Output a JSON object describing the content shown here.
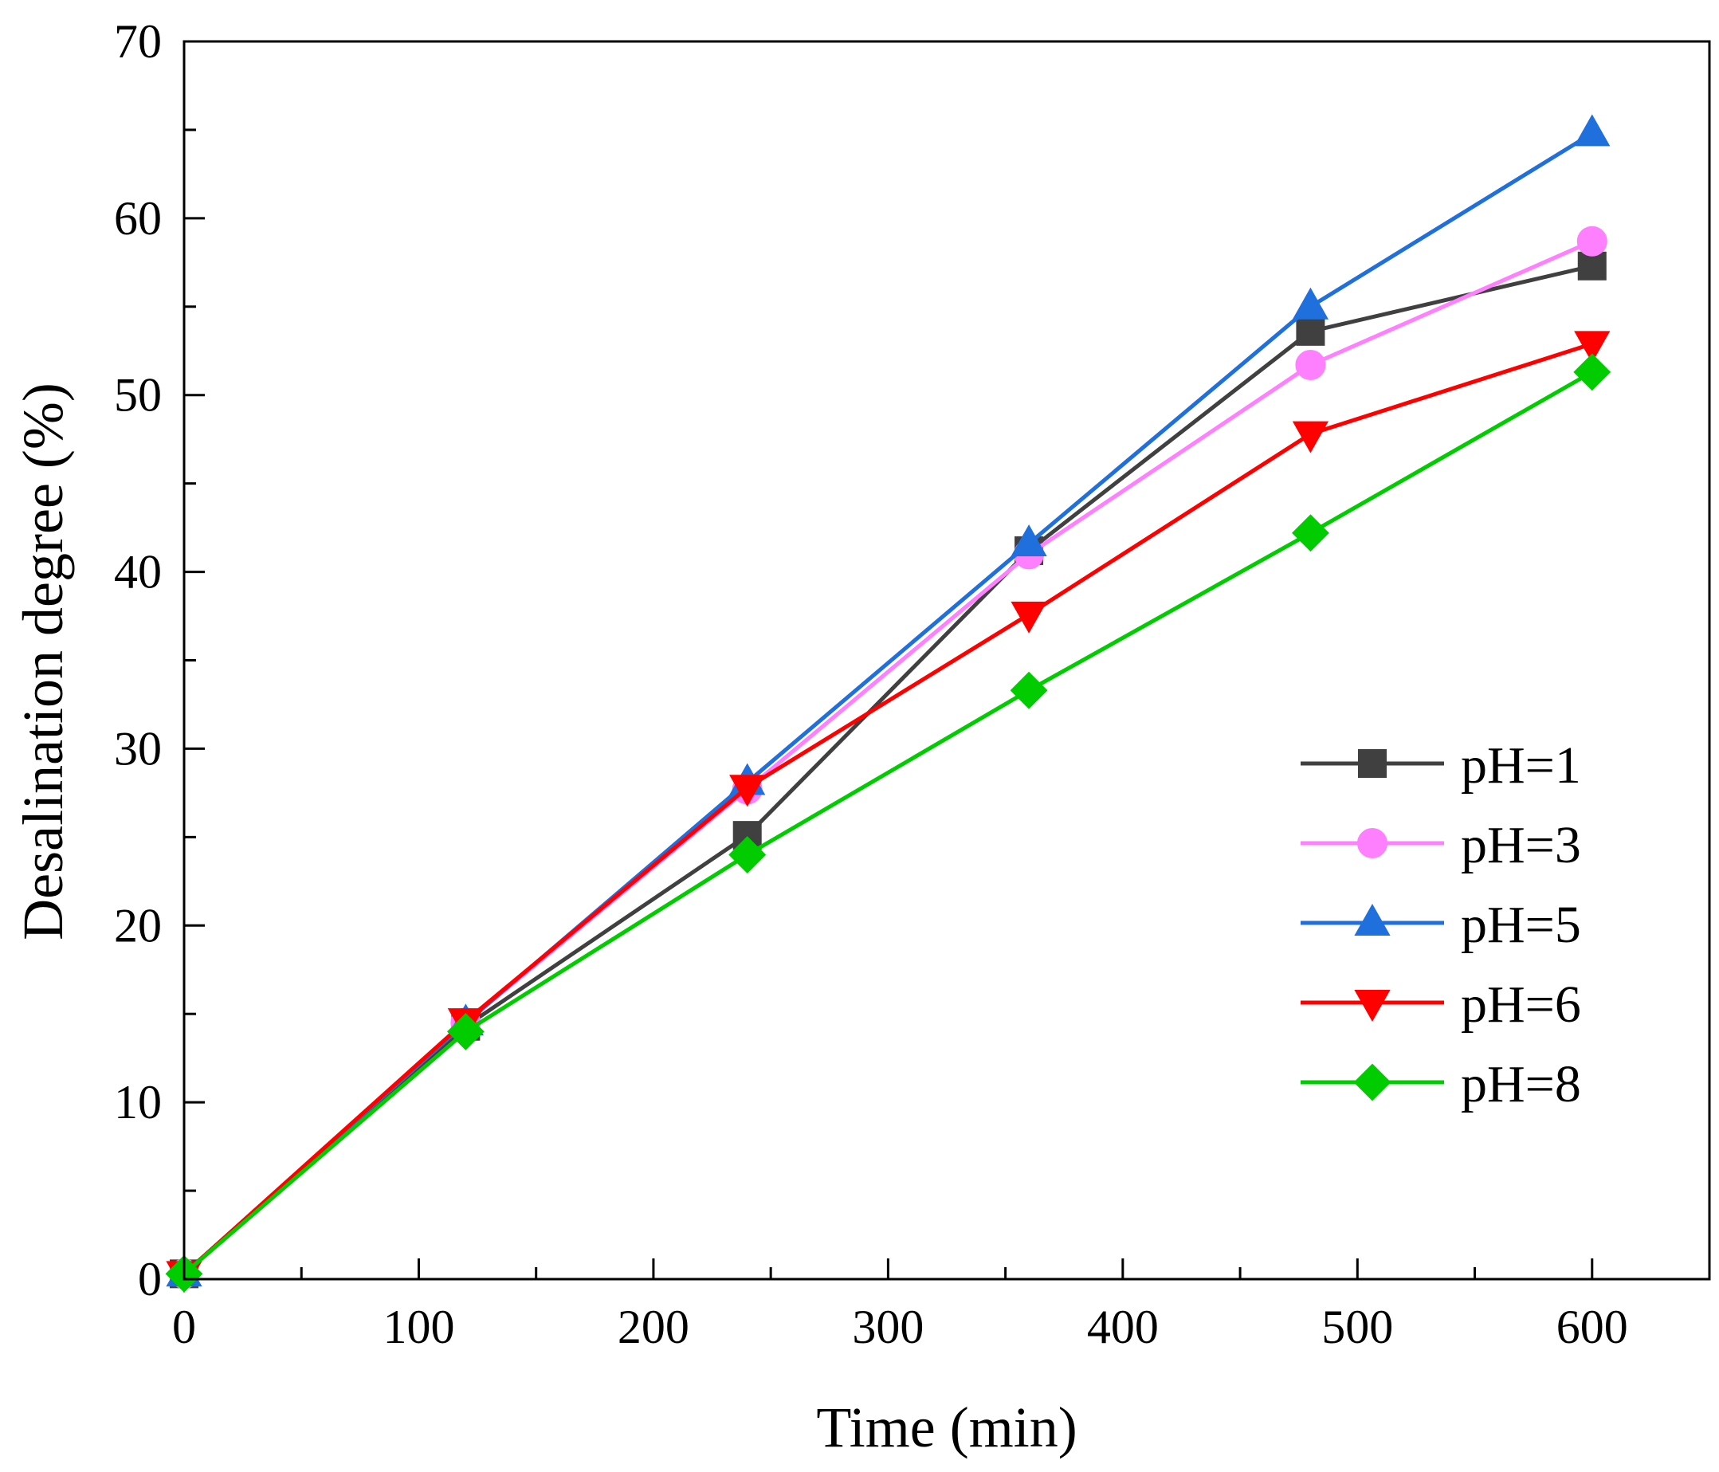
{
  "chart_data": {
    "type": "line",
    "title": "",
    "xlabel": "Time (min)",
    "ylabel": "Desalination degree (%)",
    "xlim": [
      0,
      650
    ],
    "ylim": [
      0,
      70
    ],
    "xticks": [
      0,
      100,
      200,
      300,
      400,
      500,
      600
    ],
    "yticks": [
      0,
      10,
      20,
      30,
      40,
      50,
      60,
      70
    ],
    "grid": false,
    "legend_position": "right",
    "series": [
      {
        "name": "pH=1",
        "color": "#404040",
        "marker": "square",
        "x": [
          0,
          120,
          240,
          360,
          480,
          600
        ],
        "values": [
          0.3,
          14.3,
          25.1,
          41.2,
          53.6,
          57.3
        ]
      },
      {
        "name": "pH=3",
        "color": "#ff80ff",
        "marker": "circle",
        "x": [
          0,
          120,
          240,
          360,
          480,
          600
        ],
        "values": [
          0.3,
          14.5,
          27.7,
          41.0,
          51.7,
          58.7
        ]
      },
      {
        "name": "pH=5",
        "color": "#1f6fdc",
        "marker": "triangle-up",
        "x": [
          0,
          120,
          240,
          360,
          480,
          600
        ],
        "values": [
          0.3,
          14.5,
          28.1,
          41.6,
          55.0,
          64.8
        ]
      },
      {
        "name": "pH=6",
        "color": "#ff0000",
        "marker": "triangle-down",
        "x": [
          0,
          120,
          240,
          360,
          480,
          600
        ],
        "values": [
          0.3,
          14.6,
          27.8,
          37.6,
          47.8,
          52.9
        ]
      },
      {
        "name": "pH=8",
        "color": "#00cc00",
        "marker": "diamond",
        "x": [
          0,
          120,
          240,
          360,
          480,
          600
        ],
        "values": [
          0.3,
          14.0,
          24.0,
          33.3,
          42.2,
          51.3
        ]
      }
    ]
  }
}
